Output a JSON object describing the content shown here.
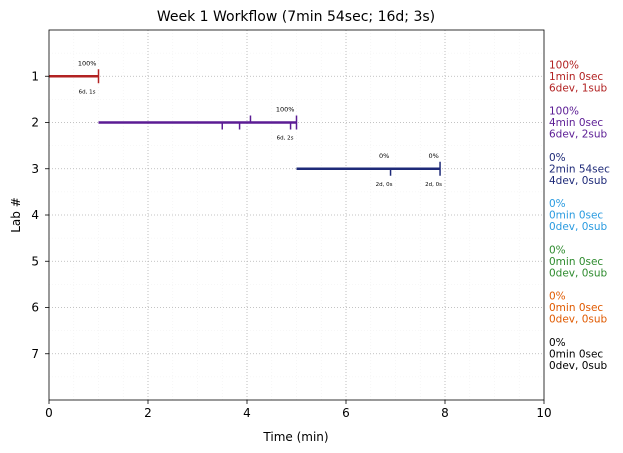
{
  "chart_data": {
    "type": "gantt",
    "title": "Week 1 Workflow (7min 54sec; 16d; 3s)",
    "xlabel": "Time (min)",
    "ylabel": "Lab #",
    "xlim": [
      0,
      10
    ],
    "ylim": [
      0,
      8
    ],
    "x_ticks": [
      "0",
      "2",
      "4",
      "6",
      "8",
      "10"
    ],
    "y_ticks": [
      "1",
      "2",
      "3",
      "4",
      "5",
      "6",
      "7"
    ],
    "grid": "dotted",
    "labs": [
      {
        "lab": 1,
        "color": "#b22222",
        "bar": {
          "start": 0,
          "end": 1
        },
        "checkpoints": [
          {
            "x": 1.0,
            "dir": "both",
            "pct": "100%",
            "detail": "6d, 1s",
            "label_x": 0.77
          }
        ],
        "side": [
          "100%",
          "1min 0sec",
          "6dev, 1sub"
        ]
      },
      {
        "lab": 2,
        "color": "#5b1c94",
        "bar": {
          "start": 1,
          "end": 5
        },
        "checkpoints": [
          {
            "x": 3.5,
            "dir": "down"
          },
          {
            "x": 3.85,
            "dir": "down"
          },
          {
            "x": 4.07,
            "dir": "up"
          },
          {
            "x": 4.88,
            "dir": "down"
          },
          {
            "x": 5.0,
            "dir": "both",
            "pct": "100%",
            "detail": "6d, 2s",
            "label_x": 4.77
          }
        ],
        "side": [
          "100%",
          "4min 0sec",
          "6dev, 2sub"
        ]
      },
      {
        "lab": 3,
        "color": "#1e2a78",
        "bar": {
          "start": 5,
          "end": 7.9
        },
        "checkpoints": [
          {
            "x": 6.9,
            "dir": "down",
            "pct": "0%",
            "detail": "2d, 0s",
            "label_x": 6.77
          },
          {
            "x": 7.9,
            "dir": "both",
            "pct": "0%",
            "detail": "2d, 0s",
            "label_x": 7.77
          }
        ],
        "side": [
          "0%",
          "2min 54sec",
          "4dev, 0sub"
        ]
      },
      {
        "lab": 4,
        "color": "#2a9be0",
        "side": [
          "0%",
          "0min 0sec",
          "0dev, 0sub"
        ]
      },
      {
        "lab": 5,
        "color": "#2e8b2e",
        "side": [
          "0%",
          "0min 0sec",
          "0dev, 0sub"
        ]
      },
      {
        "lab": 6,
        "color": "#e05a00",
        "side": [
          "0%",
          "0min 0sec",
          "0dev, 0sub"
        ]
      },
      {
        "lab": 7,
        "color": "#000000",
        "side": [
          "0%",
          "0min 0sec",
          "0dev, 0sub"
        ]
      }
    ]
  }
}
